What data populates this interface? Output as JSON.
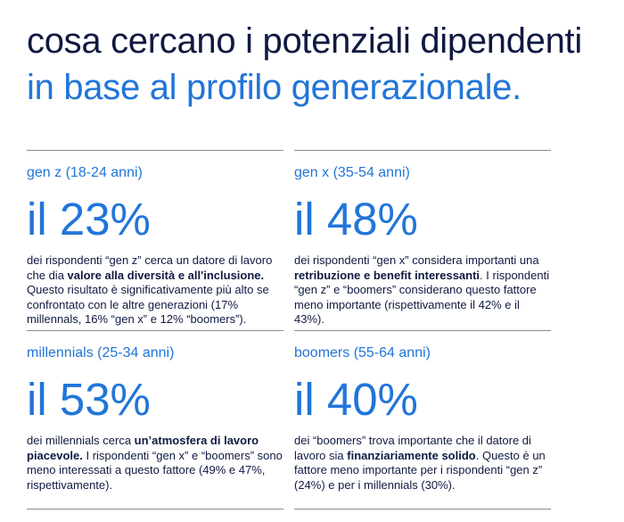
{
  "title": {
    "line1": "cosa cercano i potenziali dipendenti",
    "line2": "in base al profilo generazionale."
  },
  "cards": [
    {
      "label": "gen z (18-24 anni)",
      "stat": "il 23%",
      "desc": [
        {
          "text": "dei rispondenti “gen z” cerca un datore di lavoro che dia ",
          "bold": false
        },
        {
          "text": "valore alla diversità e all'inclusione.",
          "bold": true
        },
        {
          "text": " Questo risultato è significativamente più alto se confrontato con le altre generazioni (17% millennals, 16% “gen x” e 12% “boomers”).",
          "bold": false
        }
      ]
    },
    {
      "label": "gen x (35-54 anni)",
      "stat": "il 48%",
      "desc": [
        {
          "text": "dei rispondenti “gen x” considera importanti una ",
          "bold": false
        },
        {
          "text": "retribuzione e benefit interessanti",
          "bold": true
        },
        {
          "text": ". I rispondenti “gen z” e “boomers” considerano questo fattore meno importante (rispettivamente il 42% e il 43%).",
          "bold": false
        }
      ]
    },
    {
      "label": "millennials (25-34 anni)",
      "stat": "il 53%",
      "desc": [
        {
          "text": "dei millennials cerca ",
          "bold": false
        },
        {
          "text": "un’atmosfera di lavoro piacevole.",
          "bold": true
        },
        {
          "text": " I rispondenti “gen x” e “boomers” sono meno interessati a questo fattore (49% e 47%, rispettivamente).",
          "bold": false
        }
      ]
    },
    {
      "label": "boomers (55-64 anni)",
      "stat": "il 40%",
      "desc": [
        {
          "text": "dei “boomers” trova importante che il datore di lavoro sia ",
          "bold": false
        },
        {
          "text": "finanziariamente solido",
          "bold": true
        },
        {
          "text": ". Questo è un fattore meno importante per i rispondenti “gen z” (24%) e per i millennials (30%).",
          "bold": false
        }
      ]
    }
  ],
  "colors": {
    "navy": "#0f1941",
    "blue": "#2175d9",
    "rule": "#8c8c8c"
  }
}
